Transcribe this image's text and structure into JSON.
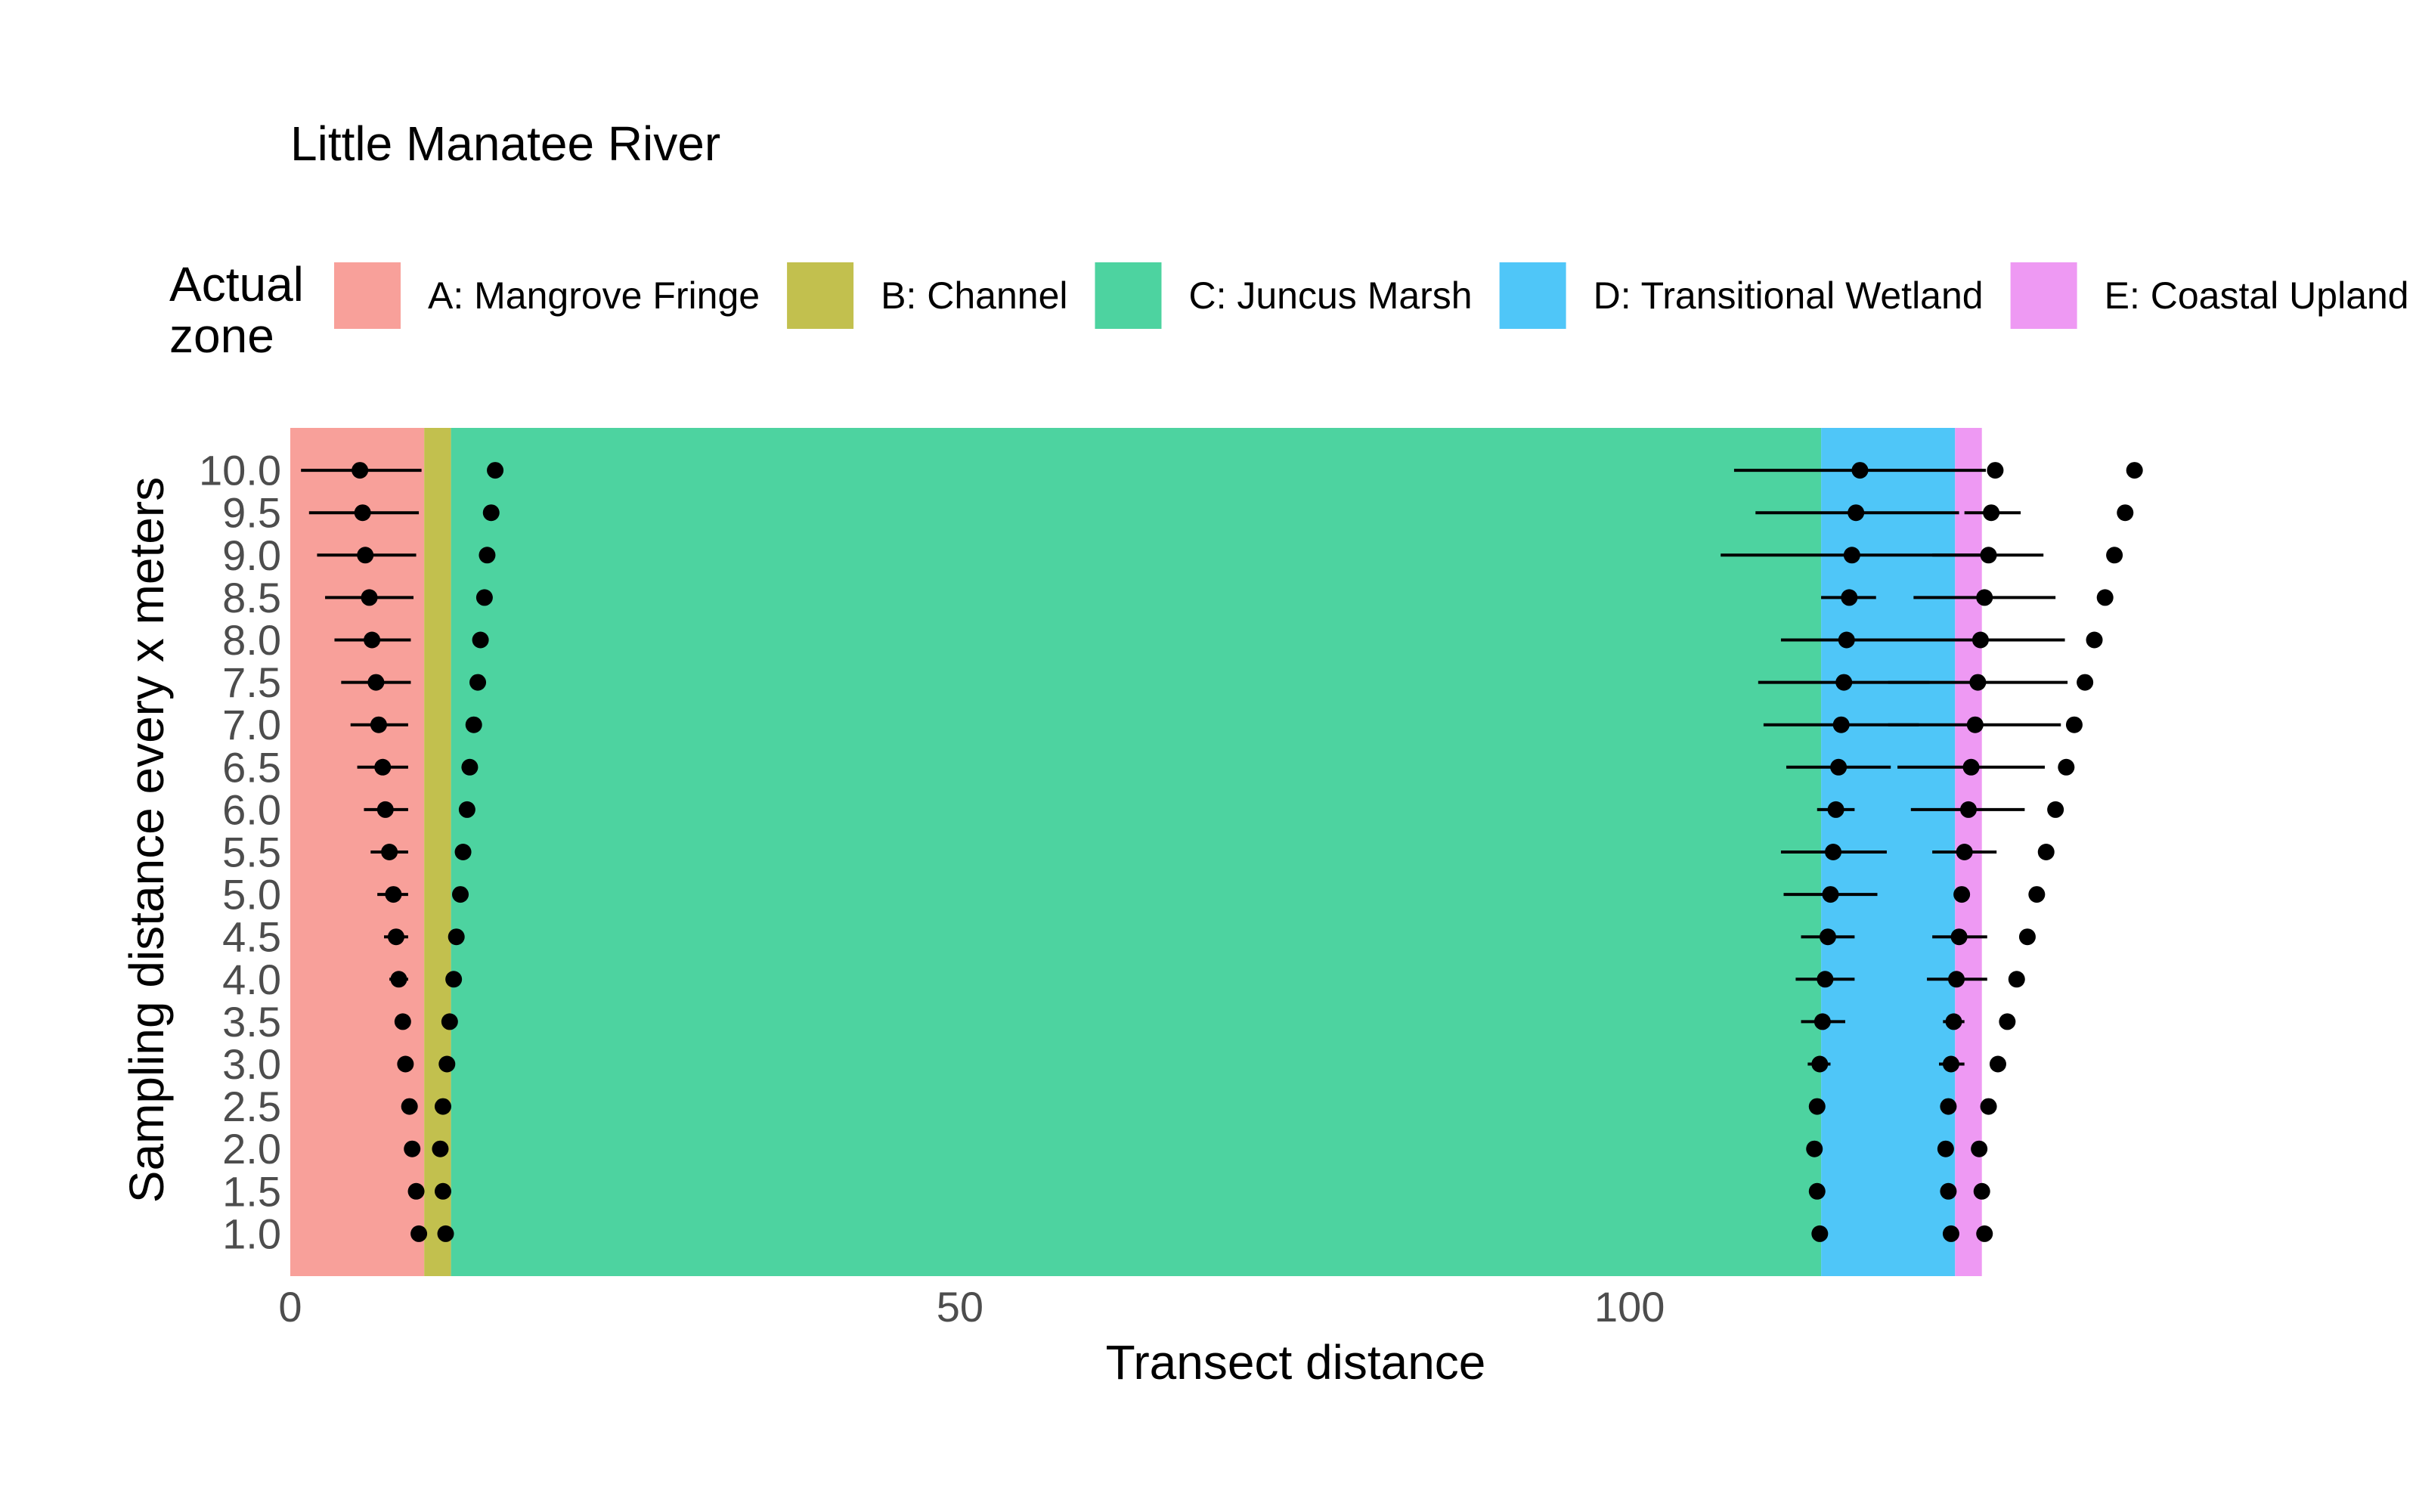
{
  "chart_data": {
    "type": "scatter",
    "title": "Little Manatee River",
    "xlabel": "Transect distance",
    "ylabel": "Sampling distance every x meters",
    "xlim": [
      0,
      138
    ],
    "ylim": [
      0.5,
      10.5
    ],
    "x_ticks": [
      0,
      50,
      100
    ],
    "x_tick_labels": [
      "0",
      "50",
      "100"
    ],
    "y_ticks": [
      1.0,
      1.5,
      2.0,
      2.5,
      3.0,
      3.5,
      4.0,
      4.5,
      5.0,
      5.5,
      6.0,
      6.5,
      7.0,
      7.5,
      8.0,
      8.5,
      9.0,
      9.5,
      10.0
    ],
    "y_tick_labels": [
      "1.0",
      "1.5",
      "2.0",
      "2.5",
      "3.0",
      "3.5",
      "4.0",
      "4.5",
      "5.0",
      "5.5",
      "6.0",
      "6.5",
      "7.0",
      "7.5",
      "8.0",
      "8.5",
      "9.0",
      "9.5",
      "10.0"
    ],
    "grid": false,
    "legend": {
      "title": "Actual zone",
      "title_lines": [
        "Actual",
        "zone"
      ],
      "position": "top",
      "entries": [
        {
          "label": "A: Mangrove Fringe",
          "color": "#F8A09A"
        },
        {
          "label": "B: Channel",
          "color": "#C2C04E"
        },
        {
          "label": "C: Juncus Marsh",
          "color": "#4DD3A0"
        },
        {
          "label": "D: Transitional Wetland",
          "color": "#4FC6F8"
        },
        {
          "label": "E: Coastal Upland",
          "color": "#EE99F3"
        }
      ]
    },
    "zones": [
      {
        "name": "A: Mangrove Fringe",
        "xmin": 0,
        "xmax": 10,
        "color": "#F8A09A"
      },
      {
        "name": "B: Channel",
        "xmin": 10,
        "xmax": 12,
        "color": "#C2C04E"
      },
      {
        "name": "C: Juncus Marsh",
        "xmin": 12,
        "xmax": 114.3,
        "color": "#4DD3A0"
      },
      {
        "name": "D: Transitional Wetland",
        "xmin": 114.3,
        "xmax": 124.3,
        "color": "#4FC6F8"
      },
      {
        "name": "E: Coastal Upland",
        "xmin": 124.3,
        "xmax": 126.3,
        "color": "#EE99F3"
      }
    ],
    "points": [
      {
        "y": 10.0,
        "x": 5.2,
        "xmin": 0.8,
        "xmax": 9.8
      },
      {
        "y": 10.0,
        "x": 15.3
      },
      {
        "y": 10.0,
        "x": 117.2,
        "xmin": 107.8,
        "xmax": 126.6
      },
      {
        "y": 10.0,
        "x": 127.3
      },
      {
        "y": 10.0,
        "x": 137.7
      },
      {
        "y": 9.5,
        "x": 5.4,
        "xmin": 1.4,
        "xmax": 9.6
      },
      {
        "y": 9.5,
        "x": 15.0
      },
      {
        "y": 9.5,
        "x": 116.9,
        "xmin": 109.4,
        "xmax": 124.6
      },
      {
        "y": 9.5,
        "x": 127.0,
        "xmin": 125.0,
        "xmax": 129.2
      },
      {
        "y": 9.5,
        "x": 137.0
      },
      {
        "y": 9.0,
        "x": 5.6,
        "xmin": 2.0,
        "xmax": 9.4
      },
      {
        "y": 9.0,
        "x": 14.7
      },
      {
        "y": 9.0,
        "x": 116.6,
        "xmin": 106.8,
        "xmax": 126.4
      },
      {
        "y": 9.0,
        "x": 126.8,
        "xmin": 122.6,
        "xmax": 130.9
      },
      {
        "y": 9.0,
        "x": 136.2
      },
      {
        "y": 8.5,
        "x": 5.9,
        "xmin": 2.6,
        "xmax": 9.2
      },
      {
        "y": 8.5,
        "x": 14.5
      },
      {
        "y": 8.5,
        "x": 116.4,
        "xmin": 114.3,
        "xmax": 118.4
      },
      {
        "y": 8.5,
        "x": 126.5,
        "xmin": 121.2,
        "xmax": 131.8
      },
      {
        "y": 8.5,
        "x": 135.5
      },
      {
        "y": 8.0,
        "x": 6.1,
        "xmin": 3.3,
        "xmax": 9.0
      },
      {
        "y": 8.0,
        "x": 14.2
      },
      {
        "y": 8.0,
        "x": 116.2,
        "xmin": 111.3,
        "xmax": 121.0
      },
      {
        "y": 8.0,
        "x": 126.2,
        "xmin": 120.0,
        "xmax": 132.5
      },
      {
        "y": 8.0,
        "x": 134.7
      },
      {
        "y": 7.5,
        "x": 6.4,
        "xmin": 3.8,
        "xmax": 9.0
      },
      {
        "y": 7.5,
        "x": 14.0
      },
      {
        "y": 7.5,
        "x": 116.0,
        "xmin": 109.6,
        "xmax": 122.4
      },
      {
        "y": 7.5,
        "x": 126.0,
        "xmin": 119.3,
        "xmax": 132.7
      },
      {
        "y": 7.5,
        "x": 134.0
      },
      {
        "y": 7.0,
        "x": 6.6,
        "xmin": 4.5,
        "xmax": 8.8
      },
      {
        "y": 7.0,
        "x": 13.7
      },
      {
        "y": 7.0,
        "x": 115.8,
        "xmin": 110.0,
        "xmax": 121.6
      },
      {
        "y": 7.0,
        "x": 125.8,
        "xmin": 119.3,
        "xmax": 132.2
      },
      {
        "y": 7.0,
        "x": 133.2
      },
      {
        "y": 6.5,
        "x": 6.9,
        "xmin": 5.0,
        "xmax": 8.8
      },
      {
        "y": 6.5,
        "x": 13.4
      },
      {
        "y": 6.5,
        "x": 115.6,
        "xmin": 111.7,
        "xmax": 119.5
      },
      {
        "y": 6.5,
        "x": 125.5,
        "xmin": 120.0,
        "xmax": 131.0
      },
      {
        "y": 6.5,
        "x": 132.6
      },
      {
        "y": 6.0,
        "x": 7.1,
        "xmin": 5.5,
        "xmax": 8.8
      },
      {
        "y": 6.0,
        "x": 13.2
      },
      {
        "y": 6.0,
        "x": 115.4,
        "xmin": 114.0,
        "xmax": 116.8
      },
      {
        "y": 6.0,
        "x": 125.3,
        "xmin": 121.0,
        "xmax": 129.5
      },
      {
        "y": 6.0,
        "x": 131.8
      },
      {
        "y": 5.5,
        "x": 7.4,
        "xmin": 6.0,
        "xmax": 8.8
      },
      {
        "y": 5.5,
        "x": 12.9
      },
      {
        "y": 5.5,
        "x": 115.2,
        "xmin": 111.3,
        "xmax": 119.2
      },
      {
        "y": 5.5,
        "x": 125.0,
        "xmin": 122.6,
        "xmax": 127.4
      },
      {
        "y": 5.5,
        "x": 131.1
      },
      {
        "y": 5.0,
        "x": 7.7,
        "xmin": 6.5,
        "xmax": 8.8
      },
      {
        "y": 5.0,
        "x": 12.7
      },
      {
        "y": 5.0,
        "x": 115.0,
        "xmin": 111.5,
        "xmax": 118.5
      },
      {
        "y": 5.0,
        "x": 124.8
      },
      {
        "y": 5.0,
        "x": 130.4
      },
      {
        "y": 4.5,
        "x": 7.9,
        "xmin": 7.0,
        "xmax": 8.8
      },
      {
        "y": 4.5,
        "x": 12.4
      },
      {
        "y": 4.5,
        "x": 114.8,
        "xmin": 112.8,
        "xmax": 116.8
      },
      {
        "y": 4.5,
        "x": 124.6,
        "xmin": 122.6,
        "xmax": 126.7
      },
      {
        "y": 4.5,
        "x": 129.7
      },
      {
        "y": 4.0,
        "x": 8.1,
        "xmin": 7.4,
        "xmax": 8.8
      },
      {
        "y": 4.0,
        "x": 12.2
      },
      {
        "y": 4.0,
        "x": 114.6,
        "xmin": 112.4,
        "xmax": 116.8
      },
      {
        "y": 4.0,
        "x": 124.4,
        "xmin": 122.2,
        "xmax": 126.7
      },
      {
        "y": 4.0,
        "x": 128.9
      },
      {
        "y": 3.5,
        "x": 8.4
      },
      {
        "y": 3.5,
        "x": 11.9
      },
      {
        "y": 3.5,
        "x": 114.4,
        "xmin": 112.8,
        "xmax": 116.1
      },
      {
        "y": 3.5,
        "x": 124.2,
        "xmin": 123.4,
        "xmax": 125.0
      },
      {
        "y": 3.5,
        "x": 128.2
      },
      {
        "y": 3.0,
        "x": 8.6
      },
      {
        "y": 3.0,
        "x": 11.7
      },
      {
        "y": 3.0,
        "x": 114.2,
        "xmin": 113.3,
        "xmax": 115.0
      },
      {
        "y": 3.0,
        "x": 124.0,
        "xmin": 123.1,
        "xmax": 125.0
      },
      {
        "y": 3.0,
        "x": 127.5
      },
      {
        "y": 2.5,
        "x": 8.9
      },
      {
        "y": 2.5,
        "x": 11.4
      },
      {
        "y": 2.5,
        "x": 114.0
      },
      {
        "y": 2.5,
        "x": 123.8
      },
      {
        "y": 2.5,
        "x": 126.8
      },
      {
        "y": 2.0,
        "x": 9.1
      },
      {
        "y": 2.0,
        "x": 11.2
      },
      {
        "y": 2.0,
        "x": 113.8
      },
      {
        "y": 2.0,
        "x": 123.6
      },
      {
        "y": 2.0,
        "x": 126.1
      },
      {
        "y": 1.5,
        "x": 9.4
      },
      {
        "y": 1.5,
        "x": 11.4
      },
      {
        "y": 1.5,
        "x": 114.0
      },
      {
        "y": 1.5,
        "x": 123.8
      },
      {
        "y": 1.5,
        "x": 126.3
      },
      {
        "y": 1.0,
        "x": 9.6
      },
      {
        "y": 1.0,
        "x": 11.6
      },
      {
        "y": 1.0,
        "x": 114.2
      },
      {
        "y": 1.0,
        "x": 124.0
      },
      {
        "y": 1.0,
        "x": 126.5
      }
    ]
  }
}
